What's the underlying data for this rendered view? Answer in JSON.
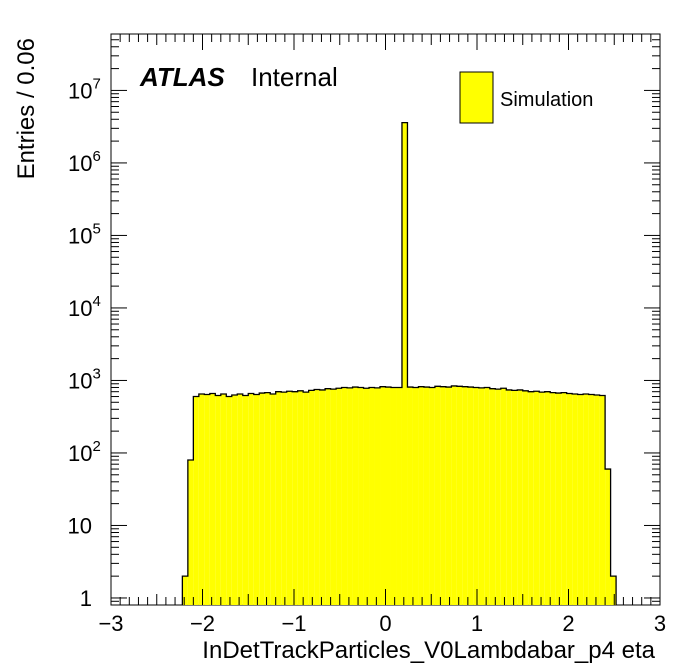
{
  "chart_data": {
    "type": "bar",
    "histogram": true,
    "title": "",
    "xlabel": "InDetTrackParticles_V0Lambdabar_p4 eta",
    "ylabel": "Entries / 0.06",
    "xlim": [
      -3,
      3
    ],
    "ylim": [
      0.8,
      60000000
    ],
    "yscale": "log",
    "x_tick_labels": [
      "−3",
      "−2",
      "−1",
      "0",
      "1",
      "2",
      "3"
    ],
    "x_ticks": [
      -3,
      -2,
      -1,
      0,
      1,
      2,
      3
    ],
    "y_ticks": [
      {
        "value": 1,
        "base": "1",
        "exp": ""
      },
      {
        "value": 10,
        "base": "10",
        "exp": ""
      },
      {
        "value": 100,
        "base": "10",
        "exp": "2"
      },
      {
        "value": 1000,
        "base": "10",
        "exp": "3"
      },
      {
        "value": 10000,
        "base": "10",
        "exp": "4"
      },
      {
        "value": 100000,
        "base": "10",
        "exp": "5"
      },
      {
        "value": 1000000,
        "base": "10",
        "exp": "6"
      },
      {
        "value": 10000000,
        "base": "10",
        "exp": "7"
      }
    ],
    "bin_width": 0.06,
    "bin_edges_start": -2.22,
    "series": [
      {
        "name": "Simulation",
        "color": "#ffff00",
        "values": [
          2,
          80,
          600,
          650,
          640,
          660,
          620,
          650,
          600,
          630,
          650,
          620,
          660,
          640,
          670,
          680,
          650,
          700,
          690,
          710,
          700,
          720,
          690,
          730,
          750,
          740,
          770,
          760,
          780,
          800,
          790,
          810,
          800,
          780,
          800,
          790,
          820,
          810,
          800,
          800,
          3600000,
          810,
          800,
          820,
          810,
          800,
          830,
          820,
          810,
          840,
          830,
          820,
          810,
          800,
          790,
          800,
          770,
          760,
          780,
          740,
          730,
          740,
          720,
          700,
          710,
          690,
          700,
          680,
          670,
          680,
          660,
          650,
          640,
          650,
          640,
          630,
          620,
          60,
          2
        ]
      }
    ],
    "legend": {
      "position": "top-right",
      "entries": [
        "Simulation"
      ]
    },
    "annotations": {
      "atlas": "ATLAS",
      "status": "Internal"
    },
    "grid": false
  }
}
